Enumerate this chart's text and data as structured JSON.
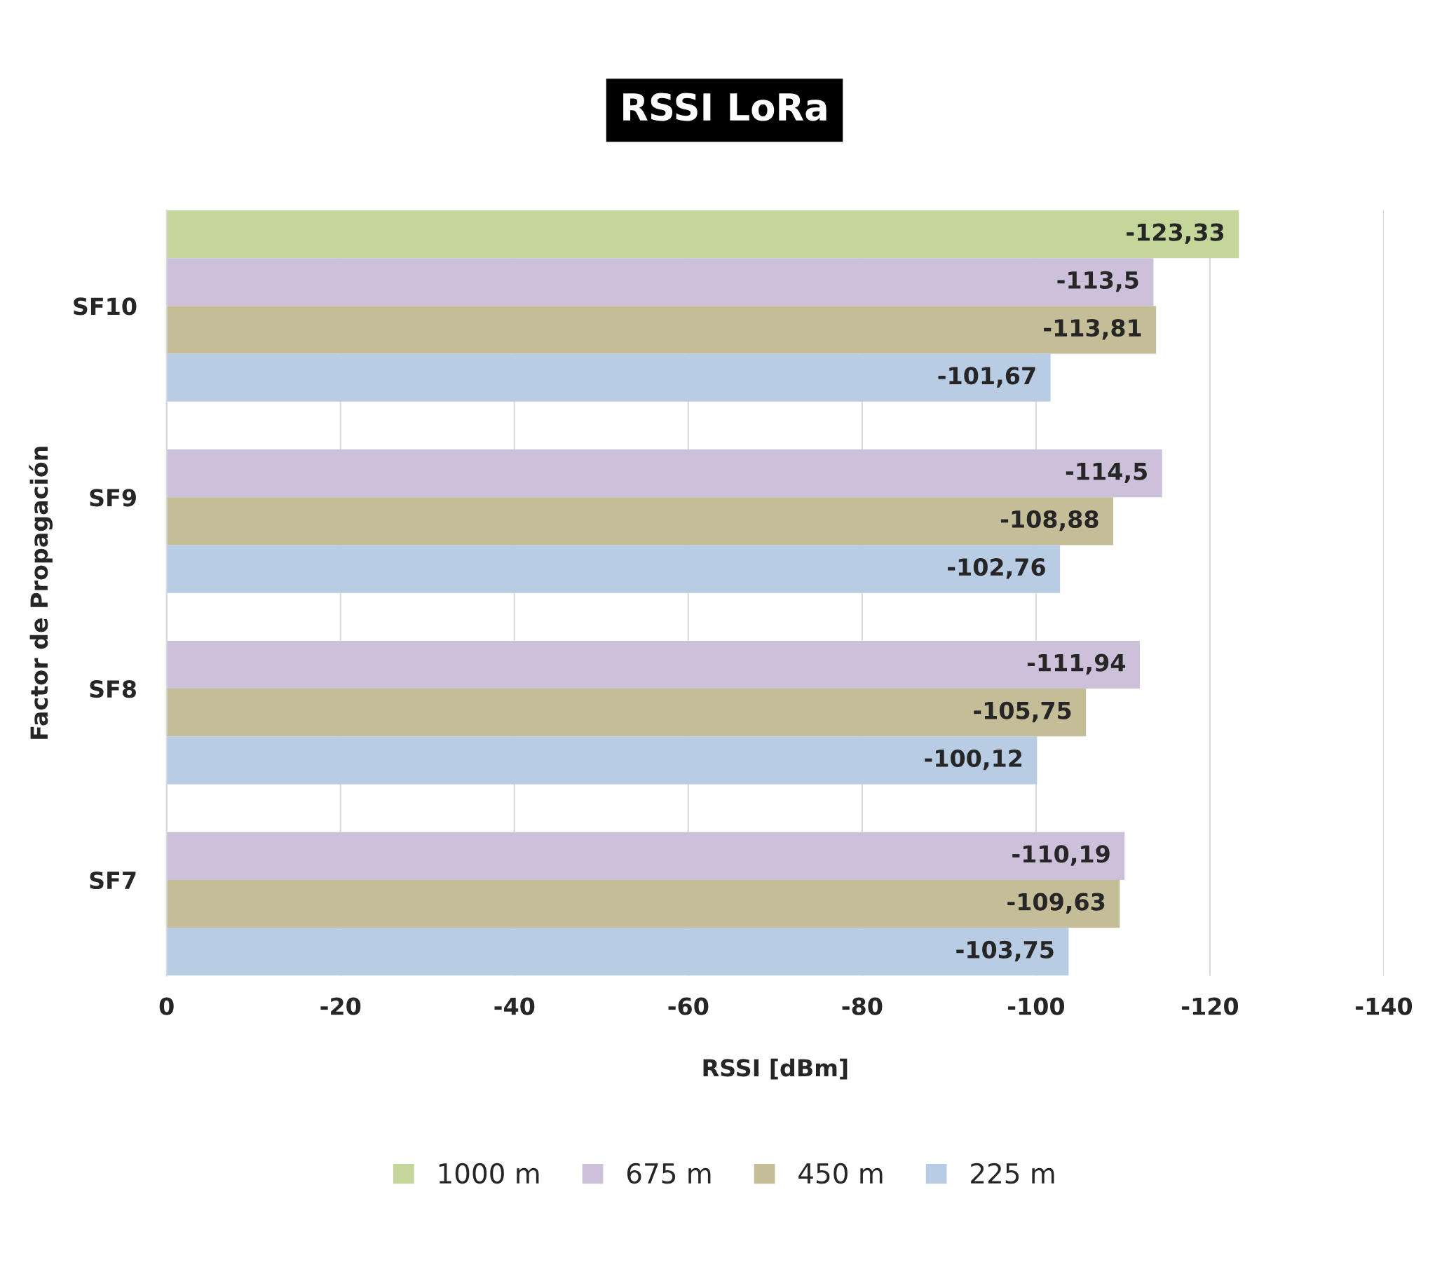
{
  "chart_data": {
    "type": "bar",
    "orientation": "horizontal",
    "title": "RSSI LoRa",
    "xlabel": "RSSI [dBm]",
    "ylabel": "Factor de Propagación",
    "categories": [
      "SF10",
      "SF9",
      "SF8",
      "SF7"
    ],
    "series": [
      {
        "name": "1000 m",
        "color": "#c4d79b",
        "values": [
          -123.33,
          null,
          null,
          null
        ],
        "value_labels": [
          "-123,33",
          null,
          null,
          null
        ]
      },
      {
        "name": "675 m",
        "color": "#ccc0da",
        "values": [
          -113.5,
          -114.5,
          -111.94,
          -110.19
        ],
        "value_labels": [
          "-113,5",
          "-114,5",
          "-111,94",
          "-110,19"
        ]
      },
      {
        "name": "450 m",
        "color": "#c4bd97",
        "values": [
          -113.81,
          -108.88,
          -105.75,
          -109.63
        ],
        "value_labels": [
          "-113,81",
          "-108,88",
          "-105,75",
          "-109,63"
        ]
      },
      {
        "name": "225 m",
        "color": "#b8cce4",
        "values": [
          -101.67,
          -102.76,
          -100.12,
          -103.75
        ],
        "value_labels": [
          "-101,67",
          "-102,76",
          "-100,12",
          "-103,75"
        ]
      }
    ],
    "xlim": [
      0,
      -140
    ],
    "xticks": [
      0,
      -20,
      -40,
      -60,
      -80,
      -100,
      -120,
      -140
    ],
    "grid": "x",
    "legend": "bottom"
  }
}
